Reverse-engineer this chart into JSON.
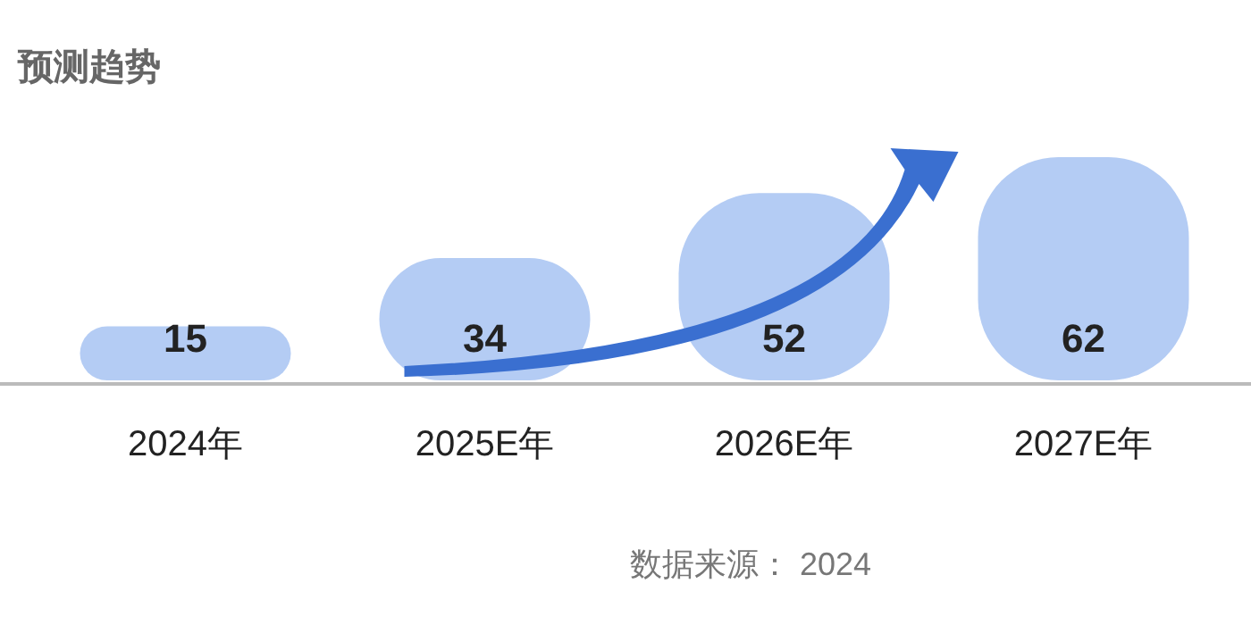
{
  "chart_data": {
    "type": "bar",
    "title": "预测趋势",
    "categories": [
      "2024年",
      "2025E年",
      "2026E年",
      "2027E年"
    ],
    "values": [
      15,
      34,
      52,
      62
    ],
    "color": "#b4ccf4",
    "data_labels": true,
    "annotations": [
      "数据来源： 2024"
    ]
  }
}
